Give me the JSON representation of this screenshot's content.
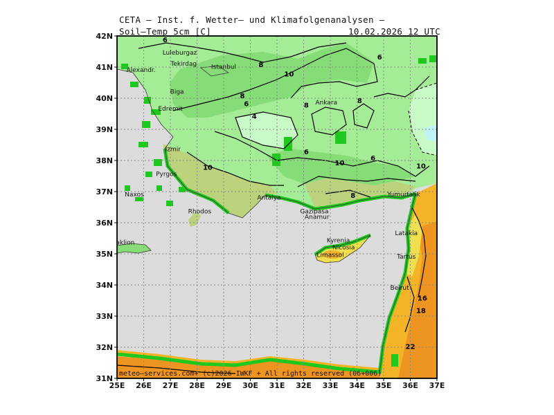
{
  "header": {
    "title": "CETA — Inst. f. Wetter— und Klimafolgenanalysen —",
    "parameter": "Soil—Temp 5cm [C]",
    "valid_time": "10.02.2026 12 UTC"
  },
  "footer": {
    "credit": "meteo—services.com+ (c)2026 IWKF + All rights reserved (06+006)"
  },
  "axes": {
    "lon_labels": [
      "25E",
      "26E",
      "27E",
      "28E",
      "29E",
      "30E",
      "31E",
      "32E",
      "33E",
      "34E",
      "35E",
      "36E",
      "37E"
    ],
    "lat_labels": [
      "42N",
      "41N",
      "40N",
      "39N",
      "38N",
      "37N",
      "36N",
      "35N",
      "34N",
      "33N",
      "32N",
      "31N"
    ]
  },
  "places": [
    {
      "name": "Luleburgaz",
      "lon": 27.35,
      "lat": 41.4
    },
    {
      "name": "Tekirdag",
      "lon": 27.5,
      "lat": 41.05
    },
    {
      "name": "Istanbul",
      "lon": 29.0,
      "lat": 40.95
    },
    {
      "name": "Alexandr.",
      "lon": 25.9,
      "lat": 40.85
    },
    {
      "name": "Biga",
      "lon": 27.25,
      "lat": 40.15
    },
    {
      "name": "Edremit",
      "lon": 27.0,
      "lat": 39.6
    },
    {
      "name": "Ankara",
      "lon": 32.85,
      "lat": 39.8
    },
    {
      "name": "Izmir",
      "lon": 27.1,
      "lat": 38.3
    },
    {
      "name": "Pyrgos",
      "lon": 26.85,
      "lat": 37.5
    },
    {
      "name": "Naxos",
      "lon": 25.65,
      "lat": 36.85
    },
    {
      "name": "Antalya",
      "lon": 30.7,
      "lat": 36.75
    },
    {
      "name": "Rhodos",
      "lon": 28.1,
      "lat": 36.3
    },
    {
      "name": "Yumurtalik",
      "lon": 35.75,
      "lat": 36.85
    },
    {
      "name": "Gazipasa",
      "lon": 32.4,
      "lat": 36.3
    },
    {
      "name": "Anamur",
      "lon": 32.5,
      "lat": 36.12
    },
    {
      "name": "Latakia",
      "lon": 35.85,
      "lat": 35.6
    },
    {
      "name": "Heraklion",
      "lon": 25.1,
      "lat": 35.3
    },
    {
      "name": "Nicosia",
      "lon": 33.5,
      "lat": 35.15
    },
    {
      "name": "Kyrenia",
      "lon": 33.3,
      "lat": 35.37
    },
    {
      "name": "Limassol",
      "lon": 33.0,
      "lat": 34.9
    },
    {
      "name": "Tartus",
      "lon": 35.85,
      "lat": 34.85
    },
    {
      "name": "Beirut",
      "lon": 35.6,
      "lat": 33.85
    }
  ],
  "contour_labels": [
    {
      "value": "6",
      "lon": 26.8,
      "lat": 41.8
    },
    {
      "value": "8",
      "lon": 30.4,
      "lat": 41.0
    },
    {
      "value": "10",
      "lon": 31.45,
      "lat": 40.7
    },
    {
      "value": "6",
      "lon": 34.85,
      "lat": 41.25
    },
    {
      "value": "8",
      "lon": 29.7,
      "lat": 40.0
    },
    {
      "value": "6",
      "lon": 29.85,
      "lat": 39.75
    },
    {
      "value": "4",
      "lon": 30.15,
      "lat": 39.35
    },
    {
      "value": "8",
      "lon": 32.1,
      "lat": 39.7
    },
    {
      "value": "8",
      "lon": 34.1,
      "lat": 39.85
    },
    {
      "value": "6",
      "lon": 32.1,
      "lat": 38.2
    },
    {
      "value": "6",
      "lon": 34.6,
      "lat": 38.0
    },
    {
      "value": "10",
      "lon": 28.4,
      "lat": 37.7
    },
    {
      "value": "10",
      "lon": 33.35,
      "lat": 37.85
    },
    {
      "value": "10",
      "lon": 36.4,
      "lat": 37.75
    },
    {
      "value": "8",
      "lon": 33.85,
      "lat": 36.8
    },
    {
      "value": "16",
      "lon": 36.45,
      "lat": 33.5
    },
    {
      "value": "18",
      "lon": 36.4,
      "lat": 33.1
    },
    {
      "value": "22",
      "lon": 36.0,
      "lat": 31.95
    }
  ],
  "legend_colors": {
    "sea_gray": "#dcdcdc",
    "green_bright": "#1ec81e",
    "green_4_6": "#c8fac8",
    "green_6_8": "#a4ec96",
    "green_8_10": "#86dc76",
    "olive_10_12": "#bcd27c",
    "yellow_12_14": "#f0e050",
    "orange_16_18": "#f4b428",
    "orange_18_22": "#ee9420",
    "cyan_cold": "#c0f4f4"
  }
}
